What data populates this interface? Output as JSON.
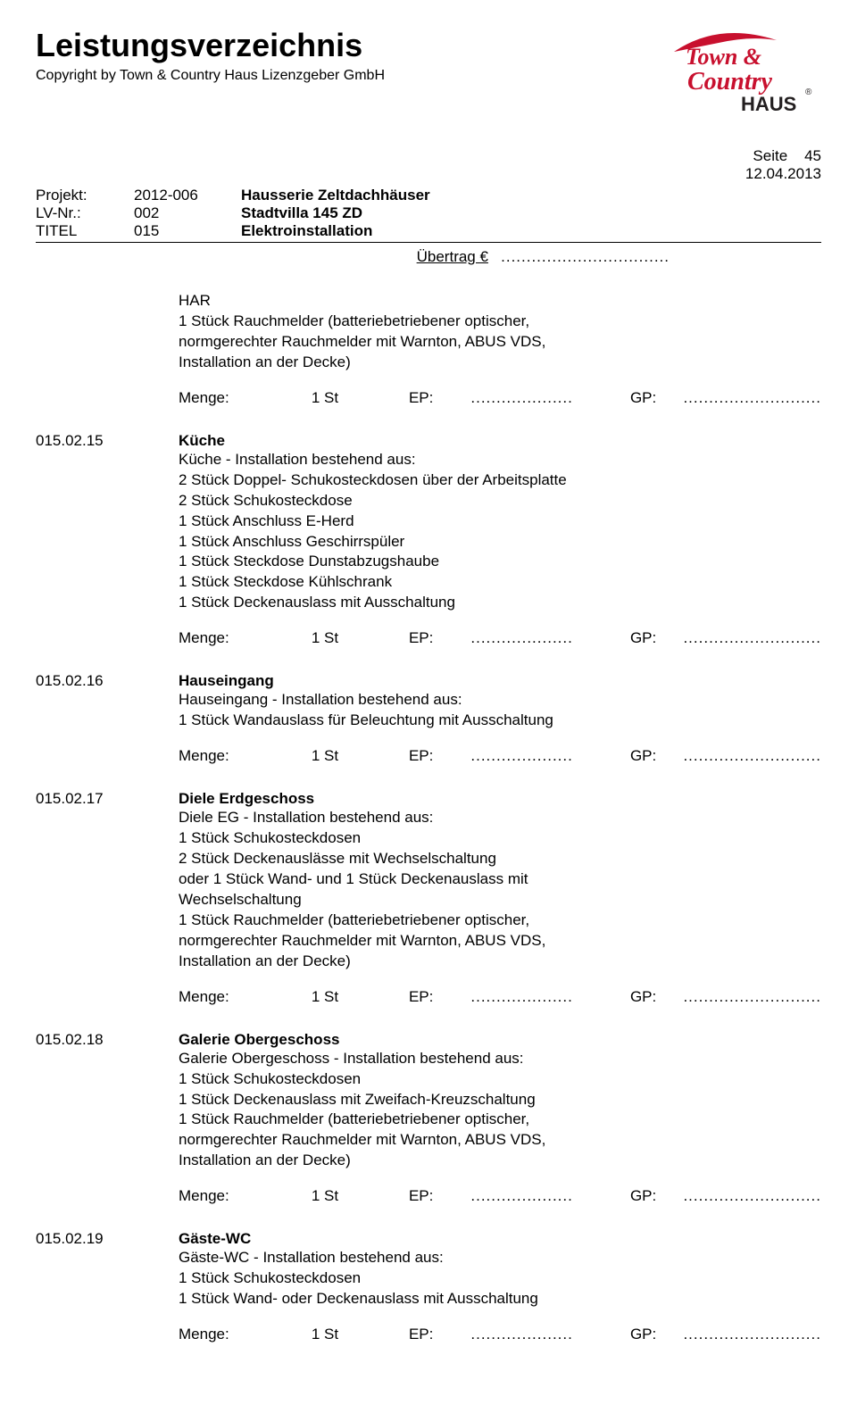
{
  "header": {
    "title": "Leistungsverzeichnis",
    "copyright": "Copyright by Town & Country Haus Lizenzgeber GmbH",
    "logo": {
      "line1": "Town &",
      "line2": "Country",
      "line3": "HAUS",
      "color_red": "#c8102e",
      "color_dark": "#231f20"
    }
  },
  "page_info": {
    "page_label": "Seite",
    "page_num": "45",
    "date": "12.04.2013"
  },
  "meta": {
    "projekt_label": "Projekt:",
    "projekt_num": "2012-006",
    "projekt_val": "Hausserie Zeltdachhäuser",
    "lvnr_label": "LV-Nr.:",
    "lvnr_num": "002",
    "lvnr_val": "Stadtvilla 145 ZD",
    "titel_label": "TITEL",
    "titel_num": "015",
    "titel_val": "Elektroinstallation"
  },
  "uebertrag": {
    "label": "Übertrag  €",
    "dots": "................................."
  },
  "intro": {
    "lines": [
      "HAR",
      "1 Stück Rauchmelder (batteriebetriebener optischer,",
      "normgerechter Rauchmelder mit Warnton, ABUS VDS,",
      "Installation an der Decke)"
    ]
  },
  "menge_labels": {
    "menge": "Menge:",
    "qty": "1 St",
    "ep": "EP:",
    "dots1": "....................",
    "gp": "GP:",
    "dots2": "..........................."
  },
  "items": [
    {
      "pos": "015.02.15",
      "title": "Küche",
      "lines": [
        "Küche - Installation bestehend aus:",
        "2 Stück Doppel- Schukosteckdosen über der Arbeitsplatte",
        "2 Stück Schukosteckdose",
        "1 Stück Anschluss E-Herd",
        "1 Stück Anschluss Geschirrspüler",
        "1 Stück Steckdose Dunstabzugshaube",
        "1 Stück Steckdose Kühlschrank",
        "1 Stück Deckenauslass mit Ausschaltung"
      ]
    },
    {
      "pos": "015.02.16",
      "title": "Hauseingang",
      "lines": [
        "Hauseingang - Installation bestehend aus:",
        "1 Stück Wandauslass für Beleuchtung mit Ausschaltung"
      ]
    },
    {
      "pos": "015.02.17",
      "title": "Diele Erdgeschoss",
      "lines": [
        "Diele EG - Installation bestehend aus:",
        "1 Stück Schukosteckdosen",
        "2 Stück Deckenauslässe mit Wechselschaltung",
        "oder 1 Stück Wand- und 1 Stück Deckenauslass mit",
        "Wechselschaltung",
        "1 Stück Rauchmelder (batteriebetriebener optischer,",
        "normgerechter Rauchmelder mit Warnton, ABUS VDS,",
        "Installation an der Decke)"
      ]
    },
    {
      "pos": "015.02.18",
      "title": "Galerie Obergeschoss",
      "lines": [
        "Galerie Obergeschoss - Installation bestehend aus:",
        "1 Stück Schukosteckdosen",
        "1 Stück Deckenauslass mit Zweifach-Kreuzschaltung",
        "1 Stück Rauchmelder (batteriebetriebener optischer,",
        "normgerechter Rauchmelder mit Warnton, ABUS VDS,",
        "Installation an der Decke)"
      ]
    },
    {
      "pos": "015.02.19",
      "title": "Gäste-WC",
      "lines": [
        "Gäste-WC - Installation bestehend aus:",
        "1 Stück Schukosteckdosen",
        "1 Stück Wand- oder Deckenauslass mit Ausschaltung"
      ]
    }
  ]
}
